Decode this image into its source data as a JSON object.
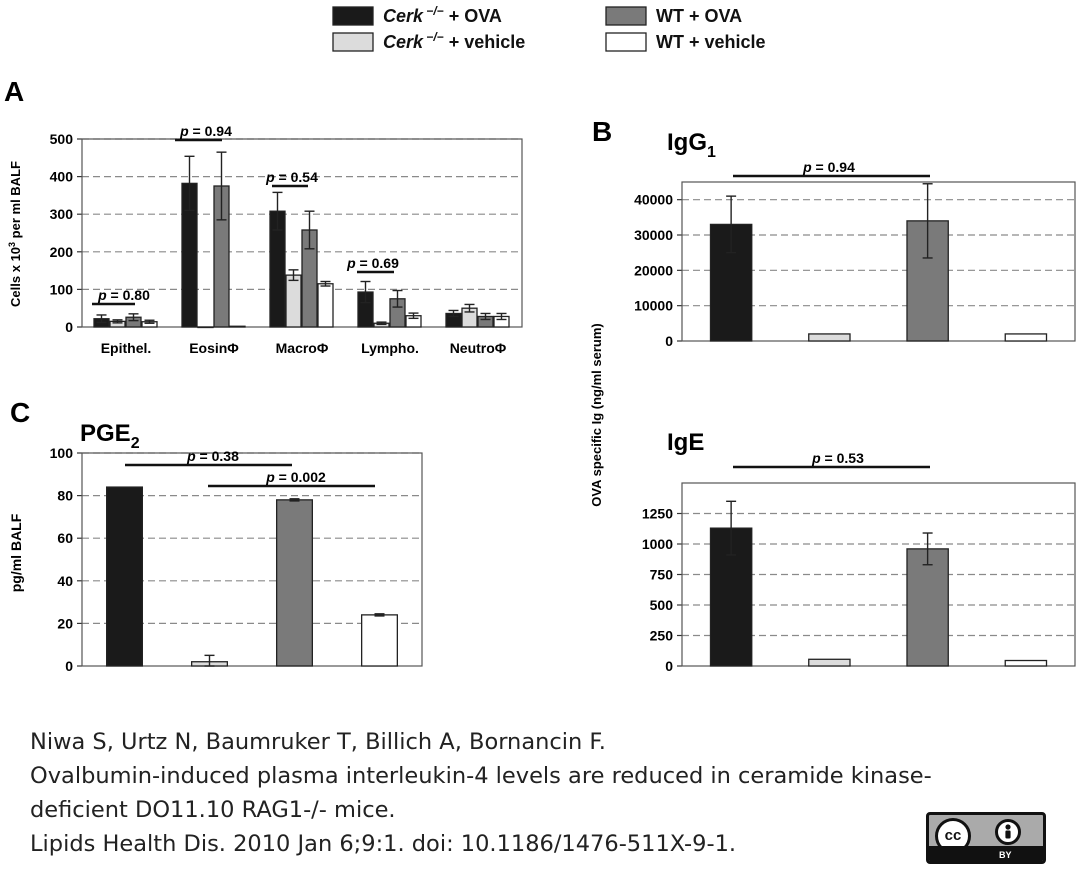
{
  "legend": {
    "items": [
      {
        "base": "Cerk",
        "sup": "−/−",
        "suffix": " + OVA",
        "color": "#1a1a1a"
      },
      {
        "base": "Cerk",
        "sup": "−/−",
        "suffix": " + vehicle",
        "color": "#dcdcdc"
      },
      {
        "base": "WT + OVA",
        "sup": "",
        "suffix": "",
        "color": "#7a7a7a"
      },
      {
        "base": "WT + vehicle",
        "sup": "",
        "suffix": "",
        "color": "#ffffff"
      }
    ]
  },
  "colors": {
    "cerk_ova": "#1a1a1a",
    "cerk_vehicle": "#dcdcdc",
    "wt_ova": "#7a7a7a",
    "wt_vehicle": "#ffffff"
  },
  "panel_labels": {
    "a": "A",
    "b": "B",
    "c": "C"
  },
  "chart_data": [
    {
      "id": "A",
      "type": "bar",
      "title": "",
      "ylabel": "Cells x 10³ per ml BALF",
      "ylim": [
        0,
        500
      ],
      "yticks": [
        0,
        100,
        200,
        300,
        400,
        500
      ],
      "categories": [
        "Epithel.",
        "EosinΦ",
        "MacroΦ",
        "Lympho.",
        "NeutroΦ"
      ],
      "series": [
        {
          "name": "Cerk−/− + OVA",
          "values": [
            22,
            382,
            308,
            93,
            36
          ],
          "errors": [
            10,
            72,
            50,
            28,
            8
          ]
        },
        {
          "name": "Cerk−/− + vehicle",
          "values": [
            15,
            0,
            138,
            10,
            50
          ],
          "errors": [
            4,
            0,
            14,
            3,
            10
          ]
        },
        {
          "name": "WT + OVA",
          "values": [
            26,
            375,
            258,
            75,
            28
          ],
          "errors": [
            9,
            90,
            50,
            22,
            8
          ]
        },
        {
          "name": "WT + vehicle",
          "values": [
            14,
            2,
            115,
            30,
            28
          ],
          "errors": [
            4,
            0,
            6,
            7,
            8
          ]
        }
      ],
      "annotations": [
        "p = 0.80",
        "p = 0.94",
        "p = 0.54",
        "p = 0.69"
      ]
    },
    {
      "id": "B1",
      "type": "bar",
      "title": "IgG1",
      "ylabel": "OVA specific Ig  (ng/ml serum)",
      "ylim": [
        0,
        45000
      ],
      "yticks": [
        0,
        10000,
        20000,
        30000,
        40000
      ],
      "series": [
        {
          "name": "Cerk−/− + OVA",
          "values": [
            33000
          ],
          "errors": [
            8000
          ]
        },
        {
          "name": "Cerk−/− + vehicle",
          "values": [
            2000
          ],
          "errors": [
            0
          ]
        },
        {
          "name": "WT + OVA",
          "values": [
            34000
          ],
          "errors": [
            10500
          ]
        },
        {
          "name": "WT + vehicle",
          "values": [
            2000
          ],
          "errors": [
            0
          ]
        }
      ],
      "annotations": [
        "p = 0.94"
      ]
    },
    {
      "id": "B2",
      "type": "bar",
      "title": "IgE",
      "ylabel": "OVA specific Ig  (ng/ml serum)",
      "ylim": [
        0,
        1500
      ],
      "yticks": [
        0,
        250,
        500,
        750,
        1000,
        1250
      ],
      "series": [
        {
          "name": "Cerk−/− + OVA",
          "values": [
            1130
          ],
          "errors": [
            220
          ]
        },
        {
          "name": "Cerk−/− + vehicle",
          "values": [
            55
          ],
          "errors": [
            0
          ]
        },
        {
          "name": "WT + OVA",
          "values": [
            960
          ],
          "errors": [
            130
          ]
        },
        {
          "name": "WT + vehicle",
          "values": [
            45
          ],
          "errors": [
            0
          ]
        }
      ],
      "annotations": [
        "p = 0.53"
      ]
    },
    {
      "id": "C",
      "type": "bar",
      "title": "PGE2",
      "ylabel": "pg/ml BALF",
      "ylim": [
        0,
        100
      ],
      "yticks": [
        0,
        20,
        40,
        60,
        80,
        100
      ],
      "series": [
        {
          "name": "Cerk−/− + OVA",
          "values": [
            84
          ],
          "errors": [
            0
          ]
        },
        {
          "name": "Cerk−/− + vehicle",
          "values": [
            2
          ],
          "errors": [
            3
          ]
        },
        {
          "name": "WT + OVA",
          "values": [
            78
          ],
          "errors": [
            0.5
          ]
        },
        {
          "name": "WT + vehicle",
          "values": [
            24
          ],
          "errors": [
            0.5
          ]
        }
      ],
      "annotations": [
        "p = 0.38",
        "p = 0.002"
      ]
    }
  ],
  "citation": {
    "authors": "Niwa S, Urtz N, Baumruker T, Billich A, Bornancin F.",
    "title_line1": "Ovalbumin-induced plasma  interleukin-4 levels are reduced in ceramide kinase-",
    "title_line2": "deficient DO11.10 RAG1-/- mice.",
    "journal": "Lipids Health Dis. 2010 Jan 6;9:1. doi: 10.1186/1476-511X-9-1."
  },
  "license": {
    "cc": "cc",
    "by": "BY"
  }
}
